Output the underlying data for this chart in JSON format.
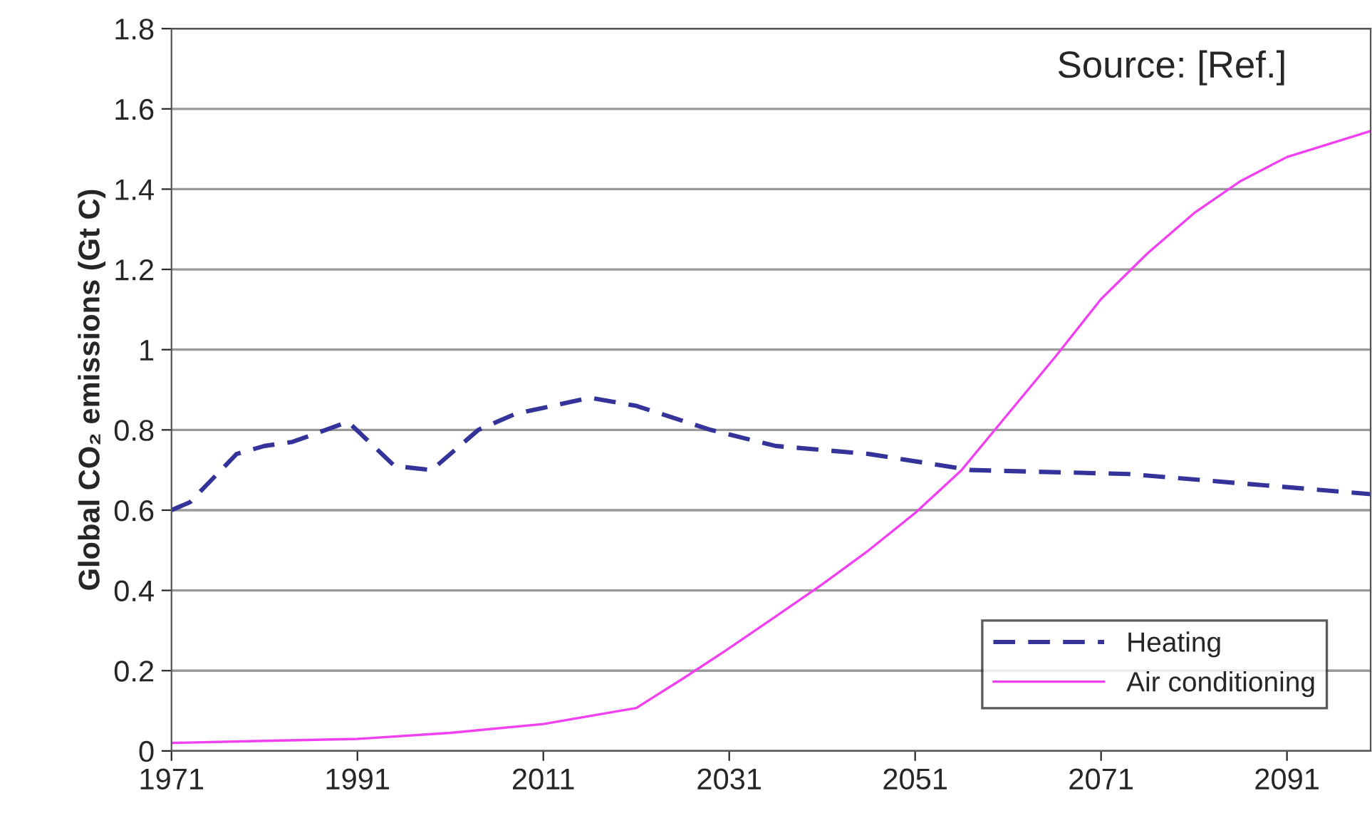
{
  "chart_data": {
    "type": "line",
    "ylabel": "Global CO₂ emissions (Gt C)",
    "annotations": [
      "Source: [Ref.]"
    ],
    "xlim": [
      1971,
      2100
    ],
    "xticks": [
      1971,
      1991,
      2011,
      2031,
      2051,
      2071,
      2091
    ],
    "ylim": [
      0,
      1.8
    ],
    "yticks": [
      0,
      0.2,
      0.4,
      0.6,
      0.8,
      1,
      1.2,
      1.4,
      1.6,
      1.8
    ],
    "grid": "y",
    "legend": "bottom right",
    "marker": "none",
    "series": [
      {
        "name": "Heating",
        "color": "#33339a",
        "line_style": "dashed",
        "x": [
          1971,
          1973,
          1978,
          1981,
          1984,
          1990,
          1995,
          1999,
          2004,
          2008,
          2016,
          2021,
          2029,
          2036,
          2046,
          2057,
          2074,
          2100
        ],
        "values": [
          0.6,
          0.62,
          0.74,
          0.76,
          0.77,
          0.82,
          0.71,
          0.7,
          0.8,
          0.84,
          0.88,
          0.86,
          0.8,
          0.76,
          0.74,
          0.7,
          0.69,
          0.64
        ]
      },
      {
        "name": "Air conditioning",
        "color": "#f040f0",
        "line_style": "solid",
        "x": [
          1971,
          1981,
          1991,
          2001,
          2011,
          2021,
          2026,
          2031,
          2036,
          2041,
          2046,
          2051,
          2056,
          2061,
          2066,
          2071,
          2076,
          2081,
          2086,
          2091,
          2100
        ],
        "values": [
          0.02,
          0.025,
          0.03,
          0.045,
          0.067,
          0.107,
          0.18,
          0.256,
          0.335,
          0.415,
          0.5,
          0.593,
          0.7,
          0.84,
          0.98,
          1.126,
          1.24,
          1.34,
          1.42,
          1.48,
          1.545
        ]
      }
    ]
  }
}
